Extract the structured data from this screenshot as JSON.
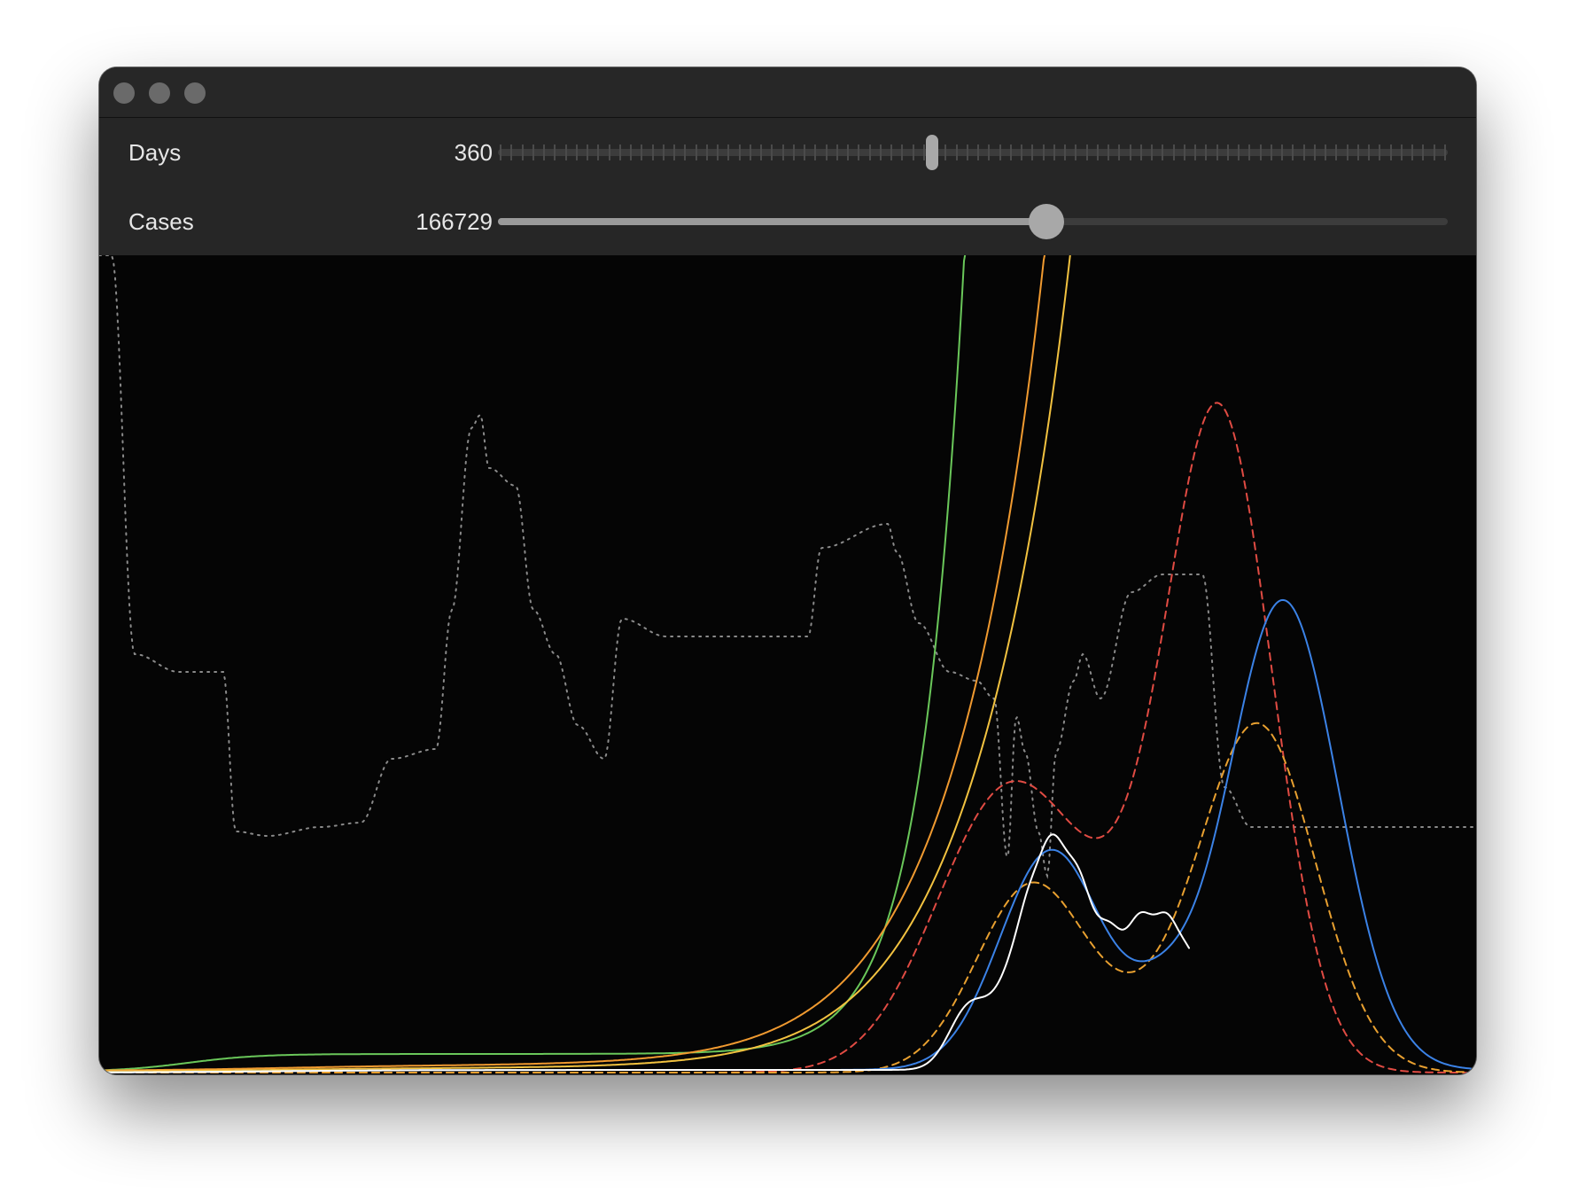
{
  "window": {
    "title": ""
  },
  "controls": {
    "days": {
      "label": "Days",
      "value": "360",
      "fraction": 0.457,
      "tick_count": 88
    },
    "cases": {
      "label": "Cases",
      "value": "166729",
      "fraction": 0.577
    }
  },
  "chart_data": {
    "type": "line",
    "title": "",
    "xlabel": "",
    "ylabel": "",
    "grid": false,
    "legend": "none",
    "series": [
      {
        "color": "#6ac75a",
        "style": "solid"
      },
      {
        "color": "#f09a30",
        "style": "solid"
      },
      {
        "color": "#f2c240",
        "style": "solid"
      },
      {
        "color": "#ffffff",
        "style": "solid"
      },
      {
        "color": "#3b82e6",
        "style": "solid"
      },
      {
        "color": "#e04b43",
        "style": "dashed"
      },
      {
        "color": "#e8a030",
        "style": "dashed"
      },
      {
        "color": "#8a8a8a",
        "style": "dotted"
      }
    ]
  }
}
